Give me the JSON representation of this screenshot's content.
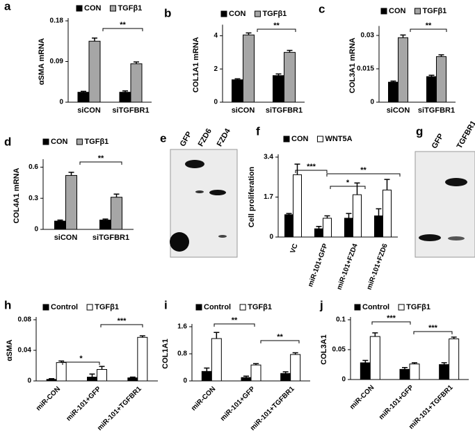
{
  "chart_data": [
    {
      "type": "bar",
      "label": "a",
      "ylabel": "αSMA mRNA",
      "categories": [
        "siCON",
        "siTGFBR1"
      ],
      "series": [
        {
          "name": "CON",
          "color": "#000000",
          "values": [
            0.022,
            0.022
          ],
          "errors": [
            0.002,
            0.003
          ]
        },
        {
          "name": "TGFβ1",
          "color": "#a6a6a6",
          "values": [
            0.135,
            0.085
          ],
          "errors": [
            0.007,
            0.004
          ]
        }
      ],
      "ylim": [
        0,
        0.18
      ],
      "yticks": [
        0,
        0.09,
        0.18
      ],
      "annotations": [
        "**"
      ]
    },
    {
      "type": "bar",
      "label": "b",
      "ylabel": "COL1A1 mRNA",
      "categories": [
        "siCON",
        "siTGFBR1"
      ],
      "series": [
        {
          "name": "CON",
          "color": "#000000",
          "values": [
            1.35,
            1.6
          ],
          "errors": [
            0.06,
            0.1
          ]
        },
        {
          "name": "TGFβ1",
          "color": "#a6a6a6",
          "values": [
            4.05,
            3.0
          ],
          "errors": [
            0.12,
            0.12
          ]
        }
      ],
      "ylim": [
        0,
        4.5
      ],
      "yticks": [
        0,
        2,
        4
      ],
      "annotations": [
        "**"
      ]
    },
    {
      "type": "bar",
      "label": "c",
      "ylabel": "COL3A1 mRNA",
      "categories": [
        "siCON",
        "siTGFBR1"
      ],
      "series": [
        {
          "name": "CON",
          "color": "#000000",
          "values": [
            0.009,
            0.0115
          ],
          "errors": [
            0.0005,
            0.0006
          ]
        },
        {
          "name": "TGFβ1",
          "color": "#a6a6a6",
          "values": [
            0.029,
            0.0205
          ],
          "errors": [
            0.0012,
            0.0008
          ]
        }
      ],
      "ylim": [
        0,
        0.033
      ],
      "yticks": [
        0,
        0.015,
        0.03
      ],
      "annotations": [
        "**"
      ]
    },
    {
      "type": "bar",
      "label": "d",
      "ylabel": "COL4A1 mRNA",
      "categories": [
        "siCON",
        "siTGFBR1"
      ],
      "series": [
        {
          "name": "CON",
          "color": "#000000",
          "values": [
            0.08,
            0.09
          ],
          "errors": [
            0.01,
            0.01
          ]
        },
        {
          "name": "TGFβ1",
          "color": "#a6a6a6",
          "values": [
            0.52,
            0.31
          ],
          "errors": [
            0.03,
            0.03
          ]
        }
      ],
      "ylim": [
        0,
        0.65
      ],
      "yticks": [
        0,
        0.3,
        0.6
      ],
      "annotations": [
        "**"
      ]
    },
    {
      "type": "bar",
      "label": "f",
      "ylabel": "Cell proliferation",
      "categories": [
        "VC",
        "miR-101+GFP",
        "miR-101+FZD4",
        "miR-101+FZD6"
      ],
      "series": [
        {
          "name": "CON",
          "color": "#000000",
          "values": [
            0.95,
            0.35,
            0.8,
            0.9
          ],
          "errors": [
            0.05,
            0.1,
            0.2,
            0.3
          ]
        },
        {
          "name": "WNT5A",
          "color": "#ffffff",
          "values": [
            2.65,
            0.8,
            1.8,
            2.0
          ],
          "errors": [
            0.45,
            0.1,
            0.5,
            0.45
          ]
        }
      ],
      "ylim": [
        0,
        3.4
      ],
      "yticks": [
        0,
        1.7,
        3.4
      ],
      "annotations": [
        "***",
        "*",
        "**"
      ]
    },
    {
      "type": "bar",
      "label": "h",
      "ylabel": "αSMA",
      "categories": [
        "miR-CON",
        "miR-101+GFP",
        "miR-101+TGFBR1"
      ],
      "series": [
        {
          "name": "Control",
          "color": "#000000",
          "values": [
            0.002,
            0.005,
            0.004
          ],
          "errors": [
            0.001,
            0.004,
            0.001
          ]
        },
        {
          "name": "TGFβ1",
          "color": "#ffffff",
          "values": [
            0.024,
            0.015,
            0.057
          ],
          "errors": [
            0.002,
            0.004,
            0.002
          ]
        }
      ],
      "ylim": [
        0,
        0.08
      ],
      "yticks": [
        0,
        0.04,
        0.08
      ],
      "annotations": [
        "*",
        "***"
      ]
    },
    {
      "type": "bar",
      "label": "i",
      "ylabel": "COL1A1",
      "categories": [
        "miR-CON",
        "miR-101+GFP",
        "miR-101+TGFBR1"
      ],
      "series": [
        {
          "name": "Control",
          "color": "#000000",
          "values": [
            0.28,
            0.1,
            0.22
          ],
          "errors": [
            0.1,
            0.04,
            0.05
          ]
        },
        {
          "name": "TGFβ1",
          "color": "#ffffff",
          "values": [
            1.25,
            0.47,
            0.78
          ],
          "errors": [
            0.18,
            0.04,
            0.05
          ]
        }
      ],
      "ylim": [
        0,
        1.6
      ],
      "yticks": [
        0,
        0.8,
        1.6
      ],
      "annotations": [
        "**",
        "**"
      ]
    },
    {
      "type": "bar",
      "label": "j",
      "ylabel": "COL3A1",
      "categories": [
        "miR-CON",
        "miR-101+GFP",
        "miR-101+TGFBR1"
      ],
      "series": [
        {
          "name": "Control",
          "color": "#000000",
          "values": [
            0.028,
            0.017,
            0.025
          ],
          "errors": [
            0.004,
            0.003,
            0.003
          ]
        },
        {
          "name": "TGFβ1",
          "color": "#ffffff",
          "values": [
            0.072,
            0.026,
            0.068
          ],
          "errors": [
            0.006,
            0.002,
            0.003
          ]
        }
      ],
      "ylim": [
        0,
        0.1
      ],
      "yticks": [
        0,
        0.05,
        0.1
      ],
      "annotations": [
        "***",
        "***"
      ]
    }
  ],
  "blots": [
    {
      "label": "e",
      "lanes": [
        "GFP",
        "FZD6",
        "FZD4"
      ]
    },
    {
      "label": "g",
      "lanes": [
        "GFP",
        "TGFBR1"
      ]
    }
  ]
}
